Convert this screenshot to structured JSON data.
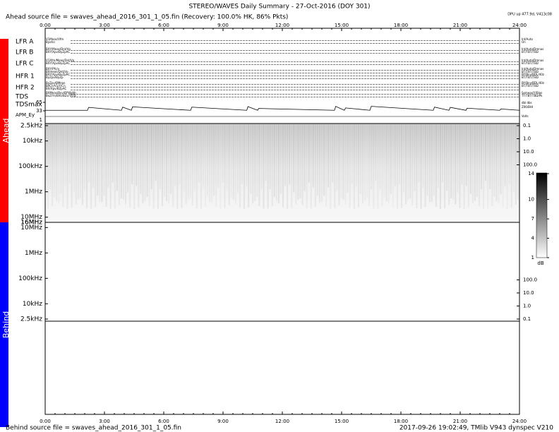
{
  "header": {
    "title": "STEREO/WAVES Daily Summary - 27-Oct-2016 (DOY 301)",
    "ahead_source": "Ahead source file = swaves_ahead_2016_301_1_05.fin (Recovery: 100.0% HK, 86% Pkts)",
    "dpu": "DPU up 477.9d, V413c08"
  },
  "time_axis": {
    "ticks": [
      "0:00",
      "3:00",
      "6:00",
      "9:00",
      "12:00",
      "15:00",
      "18:00",
      "21:00",
      "24:00"
    ]
  },
  "sides": {
    "ahead": "Ahead",
    "behind": "Behind"
  },
  "rows": [
    {
      "label": "LFR A",
      "left": [
        "V1Meas/Vfm",
        "Byafcc"
      ],
      "right": [
        "Int/Auto",
        "On"
      ]
    },
    {
      "label": "LFR B",
      "left": [
        "BXY/Meas/Dnt/Vp",
        "BXY/Xpv/ByZpAC"
      ],
      "right": [
        "Int/Auto/Dmnas",
        "BT/TBT/TBD"
      ]
    },
    {
      "label": "LFR C",
      "left": [
        "V1Xfm/Meas/Dnt/Vp",
        "BXY/Xpv/ByZpAC"
      ],
      "right": [
        "Int/Auto/Dmnas",
        "BT/TBT/TBD"
      ]
    },
    {
      "label": "HFR 1",
      "left": [
        "BXY/Pfc/v",
        "BXmeas/Dnt/Vp",
        "BXY/Xpv/ByZpAC",
        "ByZpv/ByZp"
      ],
      "right": [
        "Int/Auto/Dmnas",
        "BT/TBT/TBD",
        "BY/Bny/BDL/40z",
        "BT/TBT/TBD"
      ]
    },
    {
      "label": "HFR 2",
      "left": [
        "ByZpv/BMeas",
        "BXCn/V1/Y/Cn",
        "BX/Xpv/BZpAC"
      ],
      "right": [
        "BY/Bny/BDL/40z",
        "BT/TBT/TBD"
      ]
    },
    {
      "label": "TDS",
      "left": [
        "BXMeas/Byv/BYWidth",
        "BxZ/Ys/BXs/BZs/TATB"
      ],
      "right": [
        "Sxmeas/Y/Bias",
        "TT/TBT/TBD/Pk"
      ]
    }
  ],
  "tdsmax": {
    "label": "TDSmax",
    "ylim": [
      25,
      73
    ],
    "yticks": [
      65,
      33
    ],
    "right": [
      "dbl dbs",
      "Z06/BHI"
    ],
    "x": [
      0,
      2.14,
      2.2,
      3.86,
      3.92,
      4.36,
      4.42,
      7.36,
      7.42,
      10.2,
      10.26,
      10.75,
      10.8,
      14.64,
      14.7,
      15.14,
      15.2,
      16.43,
      16.5,
      19.64,
      19.7,
      20.43,
      20.5,
      21.29,
      21.35,
      23.0,
      23.06,
      24
    ],
    "values": [
      35,
      35,
      46,
      35,
      47,
      35,
      48,
      35,
      47,
      35,
      49,
      35,
      42,
      35,
      50,
      35,
      44,
      35,
      50,
      35,
      47,
      35,
      46,
      35,
      43,
      35,
      40,
      35
    ]
  },
  "apm": {
    "label": "APM_Ey",
    "right": "Volts",
    "tick": "1"
  },
  "ahead_spectrogram": {
    "freq_labels": [
      {
        "value": 2500,
        "label": "2.5kHz"
      },
      {
        "value": 10000,
        "label": "10kHz"
      },
      {
        "value": 100000,
        "label": "100kHz"
      },
      {
        "value": 1000000,
        "label": "1MHz"
      },
      {
        "value": 10000000,
        "label": "10MHz"
      },
      {
        "value": 16000000,
        "label": "16MHz"
      }
    ],
    "right_labels": [
      0.1,
      {
        "value": 1,
        "label": "1.0"
      },
      {
        "value": 10,
        "label": "10.0"
      },
      {
        "value": 100,
        "label": "100.0"
      }
    ]
  },
  "behind_spectrogram": {
    "freq_labels": [
      {
        "value": 16000000,
        "label": "16MHz"
      },
      {
        "value": 10000000,
        "label": "10MHz"
      },
      {
        "value": 1000000,
        "label": "1MHz"
      },
      {
        "value": 100000,
        "label": "100kHz"
      },
      {
        "value": 10000,
        "label": "10kHz"
      },
      {
        "value": 2500,
        "label": "2.5kHz"
      }
    ],
    "right_labels": [
      {
        "value": 100,
        "label": "100.0"
      },
      {
        "value": 10,
        "label": "10.0"
      },
      {
        "value": 1,
        "label": "1.0"
      },
      0.1
    ]
  },
  "colorbar": {
    "clim": [
      1,
      14
    ],
    "ticks": [
      14,
      10,
      7,
      4,
      1
    ],
    "unit": "dB"
  },
  "footer": {
    "behind_source": "Behind source file = swaves_ahead_2016_301_1_05.fin",
    "stamp": "2017-09-26 19:02:49, TMlib V943 dynspec V210"
  }
}
